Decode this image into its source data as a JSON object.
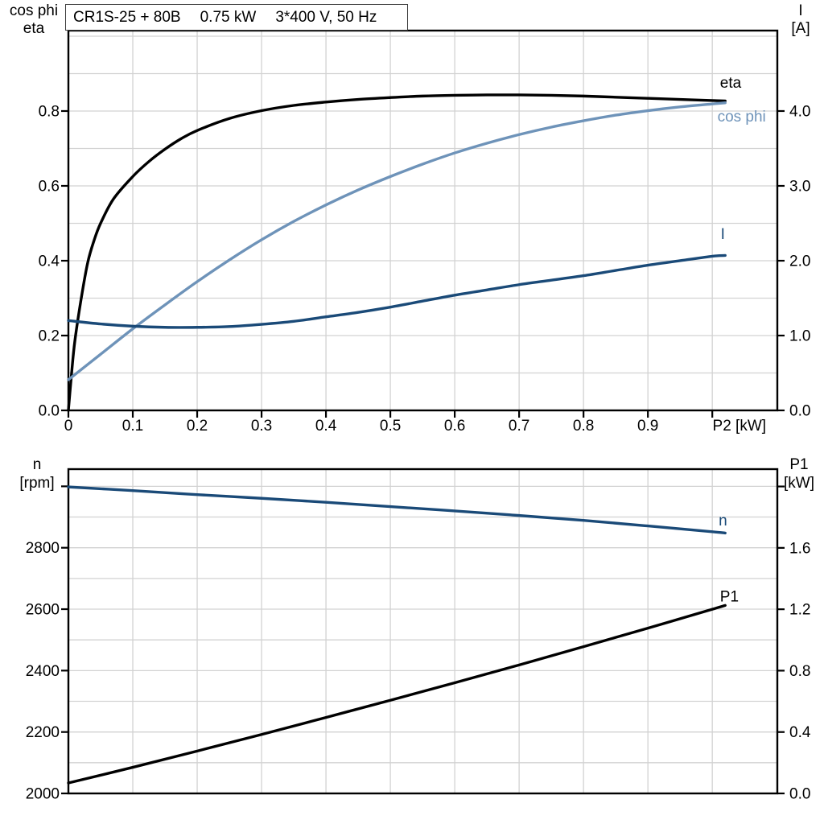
{
  "header": {
    "title_parts": [
      "CR1S-25 + 80B",
      "0.75 kW",
      "3*400 V, 50 Hz"
    ]
  },
  "colors": {
    "black": "#000000",
    "light_blue": "#6e93b9",
    "dark_blue": "#1a4a78",
    "grid": "#d2d2d2",
    "axis": "#000000"
  },
  "chart_data": [
    {
      "id": "top-performance-chart",
      "type": "line",
      "x_axis": {
        "label": "P2 [kW]",
        "label_at": 1.042,
        "min": 0,
        "max": 1.101,
        "grid": [
          0.1,
          0.2,
          0.3,
          0.4,
          0.5,
          0.6,
          0.7,
          0.8,
          0.9,
          1.0
        ],
        "ticks": [
          [
            0,
            "0"
          ],
          [
            0.1,
            "0.1"
          ],
          [
            0.2,
            "0.2"
          ],
          [
            0.3,
            "0.3"
          ],
          [
            0.4,
            "0.4"
          ],
          [
            0.5,
            "0.5"
          ],
          [
            0.6,
            "0.6"
          ],
          [
            0.7,
            "0.7"
          ],
          [
            0.8,
            "0.8"
          ],
          [
            0.9,
            "0.9"
          ],
          [
            1.0,
            ""
          ]
        ]
      },
      "left_axis": {
        "label_lines": [
          "cos phi",
          "eta"
        ],
        "min": 0,
        "max": 1.015,
        "grid": [
          0.1,
          0.2,
          0.3,
          0.4,
          0.5,
          0.6,
          0.7,
          0.8,
          0.9,
          1.0
        ],
        "ticks": [
          [
            0,
            "0.0"
          ],
          [
            0.2,
            "0.2"
          ],
          [
            0.4,
            "0.4"
          ],
          [
            0.6,
            "0.6"
          ],
          [
            0.8,
            "0.8"
          ]
        ]
      },
      "right_axis": {
        "label_lines": [
          "I",
          "[A]"
        ],
        "min": 0,
        "max": 5.075,
        "ticks": [
          [
            0,
            "0.0"
          ],
          [
            1,
            "1.0"
          ],
          [
            2,
            "2.0"
          ],
          [
            3,
            "3.0"
          ],
          [
            4,
            "4.0"
          ]
        ]
      },
      "series": [
        {
          "name": "eta",
          "label": "eta",
          "axis": "left",
          "color": "#000000",
          "label_at": [
            1.012,
            0.862
          ],
          "points": [
            [
              0,
              0
            ],
            [
              0.005,
              0.1
            ],
            [
              0.01,
              0.185
            ],
            [
              0.02,
              0.3
            ],
            [
              0.03,
              0.395
            ],
            [
              0.04,
              0.455
            ],
            [
              0.05,
              0.5
            ],
            [
              0.07,
              0.565
            ],
            [
              0.1,
              0.625
            ],
            [
              0.125,
              0.665
            ],
            [
              0.15,
              0.698
            ],
            [
              0.175,
              0.726
            ],
            [
              0.2,
              0.748
            ],
            [
              0.25,
              0.78
            ],
            [
              0.3,
              0.801
            ],
            [
              0.35,
              0.815
            ],
            [
              0.4,
              0.824
            ],
            [
              0.45,
              0.831
            ],
            [
              0.5,
              0.836
            ],
            [
              0.55,
              0.84
            ],
            [
              0.6,
              0.842
            ],
            [
              0.65,
              0.843
            ],
            [
              0.7,
              0.843
            ],
            [
              0.75,
              0.842
            ],
            [
              0.8,
              0.84
            ],
            [
              0.85,
              0.837
            ],
            [
              0.9,
              0.834
            ],
            [
              0.95,
              0.831
            ],
            [
              1.0,
              0.828
            ],
            [
              1.02,
              0.827
            ]
          ]
        },
        {
          "name": "cos phi",
          "label": "cos phi",
          "axis": "left",
          "color": "#6e93b9",
          "label_at": [
            1.008,
            0.772
          ],
          "points": [
            [
              0,
              0.082
            ],
            [
              0.05,
              0.15
            ],
            [
              0.1,
              0.218
            ],
            [
              0.15,
              0.282
            ],
            [
              0.2,
              0.344
            ],
            [
              0.25,
              0.402
            ],
            [
              0.3,
              0.456
            ],
            [
              0.35,
              0.505
            ],
            [
              0.4,
              0.549
            ],
            [
              0.45,
              0.589
            ],
            [
              0.5,
              0.625
            ],
            [
              0.55,
              0.658
            ],
            [
              0.6,
              0.688
            ],
            [
              0.65,
              0.714
            ],
            [
              0.7,
              0.737
            ],
            [
              0.75,
              0.757
            ],
            [
              0.8,
              0.774
            ],
            [
              0.85,
              0.789
            ],
            [
              0.9,
              0.801
            ],
            [
              0.95,
              0.811
            ],
            [
              1.0,
              0.819
            ],
            [
              1.02,
              0.822
            ]
          ]
        },
        {
          "name": "I",
          "label": "I",
          "axis": "right",
          "color": "#1a4a78",
          "label_at": [
            1.013,
            2.29
          ],
          "points": [
            [
              0,
              1.2
            ],
            [
              0.05,
              1.155
            ],
            [
              0.1,
              1.125
            ],
            [
              0.15,
              1.11
            ],
            [
              0.2,
              1.11
            ],
            [
              0.25,
              1.12
            ],
            [
              0.3,
              1.15
            ],
            [
              0.35,
              1.19
            ],
            [
              0.4,
              1.25
            ],
            [
              0.45,
              1.31
            ],
            [
              0.5,
              1.38
            ],
            [
              0.55,
              1.46
            ],
            [
              0.6,
              1.54
            ],
            [
              0.65,
              1.61
            ],
            [
              0.7,
              1.68
            ],
            [
              0.75,
              1.74
            ],
            [
              0.8,
              1.8
            ],
            [
              0.85,
              1.87
            ],
            [
              0.9,
              1.94
            ],
            [
              0.95,
              2.0
            ],
            [
              1.0,
              2.06
            ],
            [
              1.02,
              2.07
            ]
          ]
        }
      ]
    },
    {
      "id": "bottom-speed-power-chart",
      "type": "line",
      "x_axis": {
        "label": "",
        "label_at": null,
        "min": 0,
        "max": 1.101,
        "grid": [
          0.1,
          0.2,
          0.3,
          0.4,
          0.5,
          0.6,
          0.7,
          0.8,
          0.9,
          1.0
        ],
        "ticks": []
      },
      "left_axis": {
        "label_lines": [
          "n",
          "[rpm]"
        ],
        "min": 2000,
        "max": 3056,
        "grid": [
          2100,
          2200,
          2300,
          2400,
          2500,
          2600,
          2700,
          2800,
          2900,
          3000
        ],
        "ticks": [
          [
            2000,
            "2000"
          ],
          [
            2200,
            "2200"
          ],
          [
            2400,
            "2400"
          ],
          [
            2600,
            "2600"
          ],
          [
            2800,
            "2800"
          ],
          [
            3000,
            ""
          ]
        ]
      },
      "right_axis": {
        "label_lines": [
          "P1",
          "[kW]"
        ],
        "min": 0,
        "max": 2.113,
        "ticks": [
          [
            0,
            "0.0"
          ],
          [
            0.4,
            "0.4"
          ],
          [
            0.8,
            "0.8"
          ],
          [
            1.2,
            "1.2"
          ],
          [
            1.6,
            "1.6"
          ],
          [
            2.0,
            ""
          ]
        ]
      },
      "series": [
        {
          "name": "n",
          "label": "n",
          "axis": "left",
          "color": "#1a4a78",
          "label_at": [
            1.01,
            2872
          ],
          "points": [
            [
              0,
              2998
            ],
            [
              0.1,
              2986
            ],
            [
              0.2,
              2973
            ],
            [
              0.3,
              2961
            ],
            [
              0.4,
              2948
            ],
            [
              0.5,
              2934
            ],
            [
              0.6,
              2920
            ],
            [
              0.7,
              2905
            ],
            [
              0.8,
              2889
            ],
            [
              0.9,
              2871
            ],
            [
              1.0,
              2852
            ],
            [
              1.02,
              2848
            ]
          ]
        },
        {
          "name": "P1",
          "label": "P1",
          "axis": "right",
          "color": "#000000",
          "label_at": [
            1.012,
            1.25
          ],
          "points": [
            [
              0,
              0.068
            ],
            [
              0.1,
              0.17
            ],
            [
              0.2,
              0.276
            ],
            [
              0.3,
              0.384
            ],
            [
              0.4,
              0.495
            ],
            [
              0.5,
              0.607
            ],
            [
              0.6,
              0.721
            ],
            [
              0.7,
              0.837
            ],
            [
              0.8,
              0.956
            ],
            [
              0.9,
              1.077
            ],
            [
              1.0,
              1.2
            ],
            [
              1.02,
              1.225
            ]
          ]
        }
      ]
    }
  ]
}
